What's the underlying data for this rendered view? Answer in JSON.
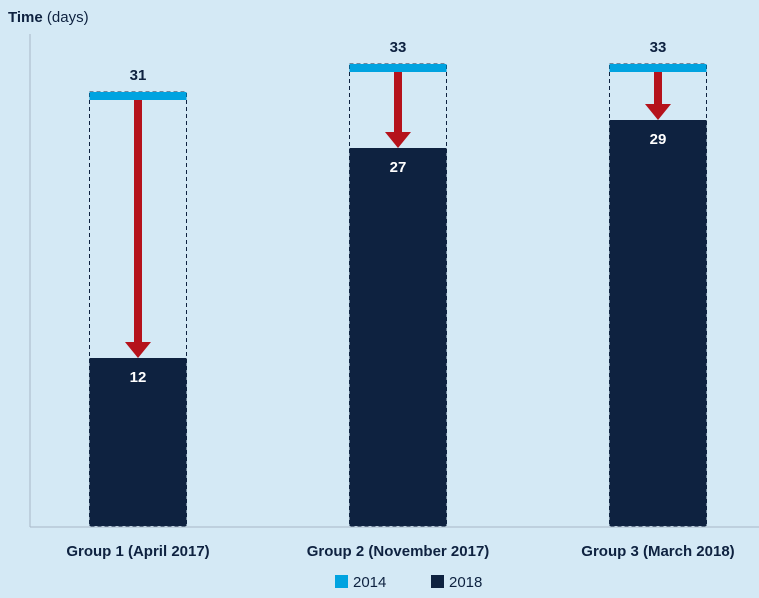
{
  "chart_data": {
    "type": "bar_change",
    "ylabel": "Time",
    "ylabel_unit": "(days)",
    "categories": [
      "Group 1 (April 2017)",
      "Group 2 (November 2017)",
      "Group 3 (March 2018)"
    ],
    "series": [
      {
        "name": "2014",
        "color": "#00a3e0",
        "values": [
          31,
          33,
          33
        ]
      },
      {
        "name": "2018",
        "color": "#0e2240",
        "values": [
          12,
          27,
          29
        ]
      }
    ],
    "arrow_color": "#b5121b",
    "ylim": [
      0,
      36
    ]
  }
}
